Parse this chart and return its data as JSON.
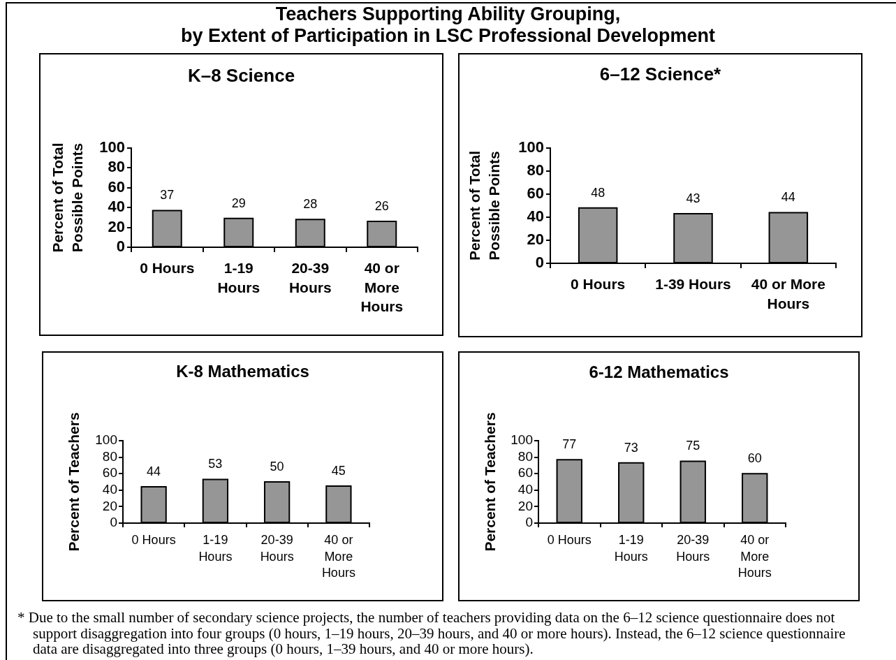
{
  "chart_data": [
    {
      "type": "other",
      "title": "Teachers Supporting Ability Grouping,\nby Extent of Participation in LSC Professional Development"
    },
    {
      "type": "bar",
      "title": "K–8 Science",
      "ylabel": "Percent of Total Possible Points",
      "categories": [
        "0 Hours",
        "1-19 Hours",
        "20-39 Hours",
        "40 or More Hours"
      ],
      "values": [
        37,
        29,
        28,
        26
      ],
      "color": "#969696",
      "ylim": [
        0,
        100
      ],
      "yticks": [
        0,
        20,
        40,
        60,
        80,
        100
      ],
      "data_labels": true
    },
    {
      "type": "bar",
      "title": "6–12 Science*",
      "ylabel": "Percent of Total Possible Points",
      "categories": [
        "0 Hours",
        "1-39 Hours",
        "40 or More Hours"
      ],
      "values": [
        48,
        43,
        44
      ],
      "color": "#969696",
      "ylim": [
        0,
        100
      ],
      "yticks": [
        0,
        20,
        40,
        60,
        80,
        100
      ],
      "data_labels": true
    },
    {
      "type": "bar",
      "title": "K-8 Mathematics",
      "ylabel": "Percent of Teachers",
      "categories": [
        "0 Hours",
        "1-19 Hours",
        "20-39 Hours",
        "40 or More Hours"
      ],
      "values": [
        44,
        53,
        50,
        45
      ],
      "color": "#969696",
      "ylim": [
        0,
        100
      ],
      "yticks": [
        0,
        20,
        40,
        60,
        80,
        100
      ],
      "data_labels": true
    },
    {
      "type": "bar",
      "title": "6-12 Mathematics",
      "ylabel": "Percent of Teachers",
      "categories": [
        "0 Hours",
        "1-19 Hours",
        "20-39 Hours",
        "40 or More Hours"
      ],
      "values": [
        77,
        73,
        75,
        60
      ],
      "color": "#969696",
      "ylim": [
        0,
        100
      ],
      "yticks": [
        0,
        20,
        40,
        60,
        80,
        100
      ],
      "data_labels": true
    },
    {
      "type": "other",
      "annotations": [
        "* Due to the small number of secondary science projects, the number of teachers providing data on the 6–12 science questionnaire does not support disaggregation into four groups (0 hours, 1–19 hours, 20–39 hours, and 40 or more hours). Instead, the 6–12 science questionnaire data are disaggregated into three groups (0 hours, 1–39 hours, and 40 or more hours)."
      ]
    }
  ]
}
